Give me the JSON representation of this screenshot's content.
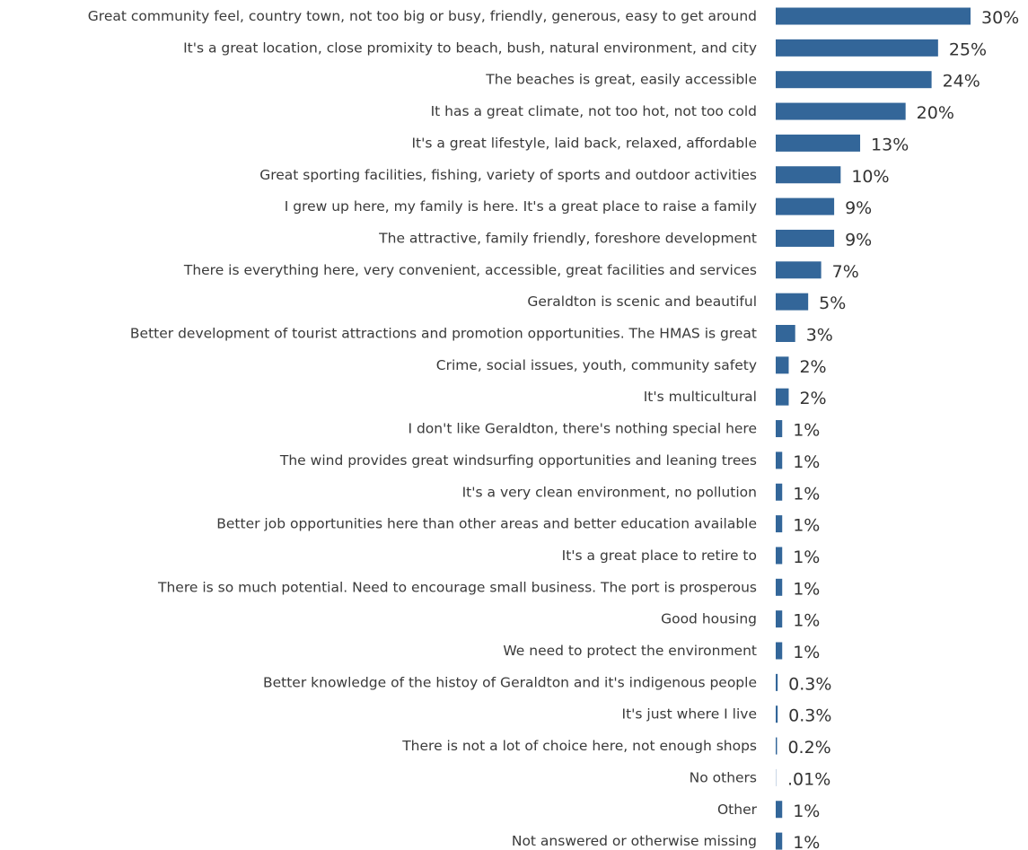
{
  "chart_data": {
    "type": "bar",
    "orientation": "horizontal",
    "title": "",
    "xlabel": "",
    "ylabel": "",
    "grid": false,
    "legend": "none",
    "bar_color": "#336699",
    "categories": [
      "Great community feel, country town, not too big or busy, friendly, generous, easy to get around",
      "It's a great location, close promixity to beach, bush, natural environment, and city",
      "The beaches is great, easily accessible",
      "It has a great climate, not too hot, not too cold",
      "It's a great lifestyle, laid back, relaxed, affordable",
      "Great sporting facilities, fishing, variety of sports and outdoor activities",
      "I grew up here, my family is here. It's a great place to raise a family",
      "The attractive, family friendly, foreshore development",
      "There is everything here, very convenient, accessible, great facilities and services",
      "Geraldton is scenic and beautiful",
      "Better development of tourist attractions and promotion opportunities. The HMAS is great",
      "Crime, social issues, youth, community safety",
      "It's multicultural",
      "I don't like Geraldton, there's nothing special here",
      "The wind provides great windsurfing opportunities and leaning trees",
      "It's a very clean environment, no pollution",
      "Better job opportunities here than other areas and better education available",
      "It's a great place to retire to",
      "There is so much potential. Need to encourage small business. The port is prosperous",
      "Good housing",
      "We need to protect the environment",
      "Better knowledge of the histoy of Geraldton and it's indigenous people",
      "It's just where I live",
      "There is not a lot of choice here, not enough shops",
      "No others",
      "Other",
      "Not answered or otherwise missing"
    ],
    "values": [
      30,
      25,
      24,
      20,
      13,
      10,
      9,
      9,
      7,
      5,
      3,
      2,
      2,
      1,
      1,
      1,
      1,
      1,
      1,
      1,
      1,
      0.3,
      0.3,
      0.2,
      0.01,
      1,
      1
    ],
    "value_labels": [
      "30%",
      "25%",
      "24%",
      "20%",
      "13%",
      "10%",
      "9%",
      "9%",
      "7%",
      "5%",
      "3%",
      "2%",
      "2%",
      "1%",
      "1%",
      "1%",
      "1%",
      "1%",
      "1%",
      "1%",
      "1%",
      "0.3%",
      "0.3%",
      "0.2%",
      ".01%",
      "1%",
      "1%"
    ],
    "xlim": [
      0,
      30
    ]
  }
}
